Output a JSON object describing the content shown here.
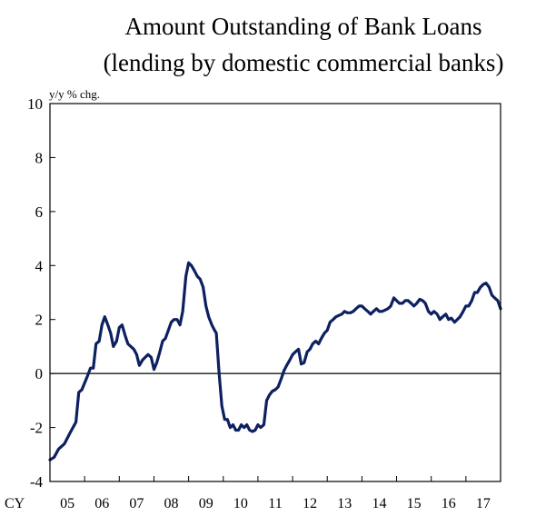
{
  "chart_data": {
    "type": "line",
    "title_lines": [
      "Amount Outstanding of Bank Loans",
      "(lending by domestic commercial banks)"
    ],
    "unit_label": "y/y % chg.",
    "x_prefix": "CY",
    "xlabel": "",
    "ylabel": "",
    "ylim": [
      -4,
      10
    ],
    "yticks": [
      10,
      8,
      6,
      4,
      2,
      0,
      -2,
      -4
    ],
    "xlim": [
      2005.0,
      2018.0
    ],
    "xticks": [
      {
        "label": "05",
        "value": 2005
      },
      {
        "label": "06",
        "value": 2006
      },
      {
        "label": "07",
        "value": 2007
      },
      {
        "label": "08",
        "value": 2008
      },
      {
        "label": "09",
        "value": 2009
      },
      {
        "label": "10",
        "value": 2010
      },
      {
        "label": "11",
        "value": 2011
      },
      {
        "label": "12",
        "value": 2012
      },
      {
        "label": "13",
        "value": 2013
      },
      {
        "label": "14",
        "value": 2014
      },
      {
        "label": "15",
        "value": 2015
      },
      {
        "label": "16",
        "value": 2016
      },
      {
        "label": "17",
        "value": 2017
      }
    ],
    "zero_line": true,
    "grid": false,
    "series": [
      {
        "name": "",
        "color": "#0d2060",
        "points": [
          [
            2005.0,
            -3.2
          ],
          [
            2005.12,
            -3.1
          ],
          [
            2005.25,
            -2.8
          ],
          [
            2005.42,
            -2.6
          ],
          [
            2005.58,
            -2.2
          ],
          [
            2005.75,
            -1.8
          ],
          [
            2005.83,
            -0.7
          ],
          [
            2005.92,
            -0.6
          ],
          [
            2006.08,
            -0.1
          ],
          [
            2006.17,
            0.2
          ],
          [
            2006.25,
            0.2
          ],
          [
            2006.33,
            1.1
          ],
          [
            2006.42,
            1.2
          ],
          [
            2006.5,
            1.8
          ],
          [
            2006.58,
            2.1
          ],
          [
            2006.67,
            1.8
          ],
          [
            2006.75,
            1.5
          ],
          [
            2006.83,
            1.0
          ],
          [
            2006.92,
            1.2
          ],
          [
            2007.0,
            1.7
          ],
          [
            2007.08,
            1.8
          ],
          [
            2007.17,
            1.4
          ],
          [
            2007.25,
            1.1
          ],
          [
            2007.42,
            0.9
          ],
          [
            2007.5,
            0.7
          ],
          [
            2007.58,
            0.3
          ],
          [
            2007.67,
            0.5
          ],
          [
            2007.75,
            0.6
          ],
          [
            2007.83,
            0.7
          ],
          [
            2007.92,
            0.6
          ],
          [
            2008.0,
            0.15
          ],
          [
            2008.08,
            0.4
          ],
          [
            2008.17,
            0.8
          ],
          [
            2008.25,
            1.2
          ],
          [
            2008.33,
            1.3
          ],
          [
            2008.5,
            1.9
          ],
          [
            2008.58,
            2.0
          ],
          [
            2008.67,
            2.0
          ],
          [
            2008.75,
            1.8
          ],
          [
            2008.83,
            2.3
          ],
          [
            2008.92,
            3.6
          ],
          [
            2009.0,
            4.1
          ],
          [
            2009.08,
            4.0
          ],
          [
            2009.17,
            3.8
          ],
          [
            2009.25,
            3.6
          ],
          [
            2009.33,
            3.5
          ],
          [
            2009.42,
            3.2
          ],
          [
            2009.5,
            2.5
          ],
          [
            2009.58,
            2.1
          ],
          [
            2009.67,
            1.8
          ],
          [
            2009.75,
            1.6
          ],
          [
            2009.8,
            1.5
          ],
          [
            2009.88,
            0.0
          ],
          [
            2009.96,
            -1.2
          ],
          [
            2010.04,
            -1.7
          ],
          [
            2010.12,
            -1.7
          ],
          [
            2010.2,
            -2.0
          ],
          [
            2010.28,
            -1.9
          ],
          [
            2010.36,
            -2.1
          ],
          [
            2010.44,
            -2.1
          ],
          [
            2010.52,
            -1.9
          ],
          [
            2010.6,
            -2.0
          ],
          [
            2010.68,
            -1.9
          ],
          [
            2010.76,
            -2.1
          ],
          [
            2010.84,
            -2.15
          ],
          [
            2010.92,
            -2.1
          ],
          [
            2011.0,
            -1.9
          ],
          [
            2011.08,
            -2.0
          ],
          [
            2011.17,
            -1.9
          ],
          [
            2011.25,
            -1.0
          ],
          [
            2011.33,
            -0.8
          ],
          [
            2011.42,
            -0.65
          ],
          [
            2011.5,
            -0.6
          ],
          [
            2011.58,
            -0.5
          ],
          [
            2011.67,
            -0.2
          ],
          [
            2011.75,
            0.1
          ],
          [
            2011.83,
            0.3
          ],
          [
            2011.92,
            0.5
          ],
          [
            2012.0,
            0.7
          ],
          [
            2012.08,
            0.8
          ],
          [
            2012.17,
            0.9
          ],
          [
            2012.25,
            0.35
          ],
          [
            2012.33,
            0.4
          ],
          [
            2012.42,
            0.8
          ],
          [
            2012.5,
            0.9
          ],
          [
            2012.58,
            1.1
          ],
          [
            2012.67,
            1.2
          ],
          [
            2012.75,
            1.1
          ],
          [
            2012.83,
            1.3
          ],
          [
            2012.92,
            1.5
          ],
          [
            2013.0,
            1.6
          ],
          [
            2013.08,
            1.9
          ],
          [
            2013.17,
            2.0
          ],
          [
            2013.25,
            2.1
          ],
          [
            2013.33,
            2.15
          ],
          [
            2013.42,
            2.2
          ],
          [
            2013.5,
            2.3
          ],
          [
            2013.58,
            2.25
          ],
          [
            2013.67,
            2.25
          ],
          [
            2013.75,
            2.3
          ],
          [
            2013.83,
            2.4
          ],
          [
            2013.92,
            2.5
          ],
          [
            2014.0,
            2.5
          ],
          [
            2014.08,
            2.4
          ],
          [
            2014.17,
            2.3
          ],
          [
            2014.25,
            2.2
          ],
          [
            2014.33,
            2.3
          ],
          [
            2014.42,
            2.4
          ],
          [
            2014.5,
            2.3
          ],
          [
            2014.58,
            2.3
          ],
          [
            2014.67,
            2.35
          ],
          [
            2014.75,
            2.4
          ],
          [
            2014.83,
            2.5
          ],
          [
            2014.92,
            2.8
          ],
          [
            2015.0,
            2.7
          ],
          [
            2015.08,
            2.6
          ],
          [
            2015.17,
            2.6
          ],
          [
            2015.25,
            2.7
          ],
          [
            2015.33,
            2.7
          ],
          [
            2015.42,
            2.6
          ],
          [
            2015.5,
            2.5
          ],
          [
            2015.58,
            2.6
          ],
          [
            2015.67,
            2.75
          ],
          [
            2015.75,
            2.7
          ],
          [
            2015.83,
            2.6
          ],
          [
            2015.92,
            2.3
          ],
          [
            2016.0,
            2.2
          ],
          [
            2016.08,
            2.3
          ],
          [
            2016.17,
            2.2
          ],
          [
            2016.25,
            2.0
          ],
          [
            2016.33,
            2.1
          ],
          [
            2016.42,
            2.2
          ],
          [
            2016.5,
            2.0
          ],
          [
            2016.58,
            2.05
          ],
          [
            2016.67,
            1.9
          ],
          [
            2016.75,
            2.0
          ],
          [
            2016.83,
            2.1
          ],
          [
            2016.92,
            2.3
          ],
          [
            2017.0,
            2.5
          ],
          [
            2017.08,
            2.5
          ],
          [
            2017.17,
            2.7
          ],
          [
            2017.25,
            3.0
          ],
          [
            2017.33,
            3.0
          ],
          [
            2017.42,
            3.2
          ],
          [
            2017.5,
            3.3
          ],
          [
            2017.58,
            3.35
          ],
          [
            2017.67,
            3.2
          ],
          [
            2017.75,
            2.9
          ],
          [
            2017.83,
            2.8
          ],
          [
            2017.92,
            2.7
          ],
          [
            2018.0,
            2.4
          ]
        ]
      }
    ]
  }
}
